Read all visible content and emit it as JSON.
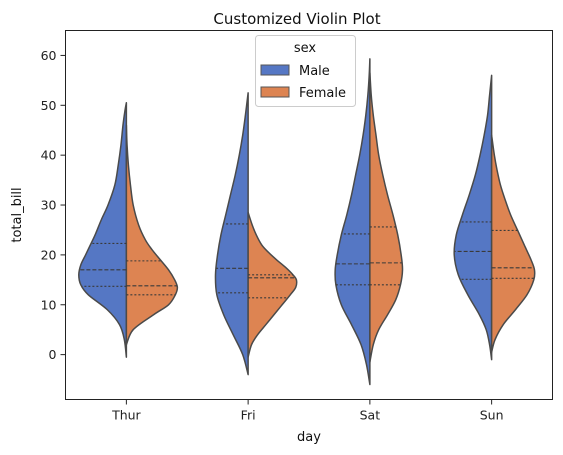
{
  "chart_data": {
    "type": "violin",
    "title": "Customized Violin Plot",
    "xlabel": "day",
    "ylabel": "total_bill",
    "categories": [
      "Thur",
      "Fri",
      "Sat",
      "Sun"
    ],
    "ylim": [
      -9,
      65
    ],
    "yticks": [
      0,
      10,
      20,
      30,
      40,
      50,
      60
    ],
    "grid": false,
    "split": true,
    "inner": "quartile",
    "legend": {
      "title": "sex",
      "placement": "upper center",
      "entries": [
        "Male",
        "Female"
      ]
    },
    "series": [
      {
        "name": "Male",
        "color": "#5577c4",
        "violins": [
          {
            "category": "Thur",
            "ymin": -0.5,
            "ymax": 50.5,
            "quartiles": [
              13.7,
              17.0,
              22.3
            ],
            "density": [
              [
                -0.5,
                0.0
              ],
              [
                3,
                0.03
              ],
              [
                6,
                0.1
              ],
              [
                9,
                0.28
              ],
              [
                12,
                0.56
              ],
              [
                14,
                0.67
              ],
              [
                16,
                0.7
              ],
              [
                18,
                0.67
              ],
              [
                20,
                0.6
              ],
              [
                22,
                0.53
              ],
              [
                24,
                0.46
              ],
              [
                27,
                0.37
              ],
              [
                30,
                0.27
              ],
              [
                34,
                0.17
              ],
              [
                38,
                0.12
              ],
              [
                42,
                0.08
              ],
              [
                46,
                0.05
              ],
              [
                49,
                0.02
              ],
              [
                50.5,
                0.0
              ]
            ]
          },
          {
            "category": "Fri",
            "ymin": -4,
            "ymax": 52.5,
            "quartiles": [
              12.4,
              17.3,
              26.2
            ],
            "density": [
              [
                -4,
                0.0
              ],
              [
                0,
                0.08
              ],
              [
                4,
                0.22
              ],
              [
                8,
                0.36
              ],
              [
                12,
                0.46
              ],
              [
                16,
                0.48
              ],
              [
                20,
                0.45
              ],
              [
                24,
                0.4
              ],
              [
                28,
                0.33
              ],
              [
                32,
                0.26
              ],
              [
                36,
                0.19
              ],
              [
                40,
                0.13
              ],
              [
                44,
                0.08
              ],
              [
                48,
                0.04
              ],
              [
                52.5,
                0.0
              ]
            ]
          },
          {
            "category": "Sat",
            "ymin": -6,
            "ymax": 59.3,
            "quartiles": [
              14.0,
              18.2,
              24.2
            ],
            "density": [
              [
                -6,
                0.0
              ],
              [
                -2,
                0.05
              ],
              [
                2,
                0.13
              ],
              [
                6,
                0.27
              ],
              [
                10,
                0.42
              ],
              [
                14,
                0.5
              ],
              [
                17,
                0.51
              ],
              [
                20,
                0.48
              ],
              [
                24,
                0.42
              ],
              [
                28,
                0.34
              ],
              [
                32,
                0.27
              ],
              [
                36,
                0.21
              ],
              [
                40,
                0.15
              ],
              [
                44,
                0.1
              ],
              [
                48,
                0.06
              ],
              [
                52,
                0.03
              ],
              [
                56,
                0.01
              ],
              [
                59.3,
                0.0
              ]
            ]
          },
          {
            "category": "Sun",
            "ymin": -1,
            "ymax": 56,
            "quartiles": [
              15.1,
              20.7,
              26.6
            ],
            "density": [
              [
                -1,
                0.0
              ],
              [
                2,
                0.03
              ],
              [
                5,
                0.08
              ],
              [
                8,
                0.18
              ],
              [
                12,
                0.35
              ],
              [
                16,
                0.49
              ],
              [
                20,
                0.55
              ],
              [
                24,
                0.52
              ],
              [
                28,
                0.43
              ],
              [
                32,
                0.33
              ],
              [
                36,
                0.24
              ],
              [
                40,
                0.17
              ],
              [
                44,
                0.11
              ],
              [
                48,
                0.06
              ],
              [
                52,
                0.03
              ],
              [
                56,
                0.0
              ]
            ]
          }
        ]
      },
      {
        "name": "Female",
        "color": "#dd8452",
        "violins": [
          {
            "category": "Thur",
            "ymin": 2,
            "ymax": 46,
            "quartiles": [
              12.0,
              13.8,
              18.8
            ],
            "density": [
              [
                2,
                0.0
              ],
              [
                5,
                0.1
              ],
              [
                8,
                0.4
              ],
              [
                10,
                0.62
              ],
              [
                12,
                0.72
              ],
              [
                13.5,
                0.75
              ],
              [
                15,
                0.71
              ],
              [
                17,
                0.62
              ],
              [
                19,
                0.5
              ],
              [
                21,
                0.38
              ],
              [
                23,
                0.28
              ],
              [
                26,
                0.18
              ],
              [
                30,
                0.1
              ],
              [
                34,
                0.06
              ],
              [
                38,
                0.03
              ],
              [
                42,
                0.01
              ],
              [
                46,
                0.0
              ]
            ]
          },
          {
            "category": "Fri",
            "ymin": -0.5,
            "ymax": 28.5,
            "quartiles": [
              11.4,
              15.4,
              16.0
            ],
            "density": [
              [
                -0.5,
                0.0
              ],
              [
                2,
                0.05
              ],
              [
                4,
                0.14
              ],
              [
                6,
                0.26
              ],
              [
                8,
                0.38
              ],
              [
                10,
                0.5
              ],
              [
                12,
                0.62
              ],
              [
                13.5,
                0.7
              ],
              [
                15,
                0.71
              ],
              [
                16,
                0.66
              ],
              [
                17.5,
                0.55
              ],
              [
                19,
                0.42
              ],
              [
                20.5,
                0.3
              ],
              [
                22,
                0.2
              ],
              [
                24,
                0.12
              ],
              [
                26,
                0.06
              ],
              [
                28.5,
                0.0
              ]
            ]
          },
          {
            "category": "Sat",
            "ymin": -1.5,
            "ymax": 56.5,
            "quartiles": [
              14.0,
              18.4,
              25.6
            ],
            "density": [
              [
                -1.5,
                0.0
              ],
              [
                2,
                0.05
              ],
              [
                5,
                0.13
              ],
              [
                8,
                0.26
              ],
              [
                11,
                0.38
              ],
              [
                14,
                0.45
              ],
              [
                17,
                0.48
              ],
              [
                20,
                0.46
              ],
              [
                24,
                0.41
              ],
              [
                28,
                0.34
              ],
              [
                32,
                0.26
              ],
              [
                36,
                0.19
              ],
              [
                40,
                0.13
              ],
              [
                44,
                0.09
              ],
              [
                48,
                0.05
              ],
              [
                52,
                0.02
              ],
              [
                56.5,
                0.0
              ]
            ]
          },
          {
            "category": "Sun",
            "ymin": 0.5,
            "ymax": 44,
            "quartiles": [
              15.3,
              17.4,
              24.9
            ],
            "density": [
              [
                0.5,
                0.0
              ],
              [
                3,
                0.05
              ],
              [
                6,
                0.17
              ],
              [
                9,
                0.35
              ],
              [
                12,
                0.52
              ],
              [
                15,
                0.62
              ],
              [
                17,
                0.63
              ],
              [
                19,
                0.58
              ],
              [
                22,
                0.48
              ],
              [
                25,
                0.38
              ],
              [
                28,
                0.28
              ],
              [
                31,
                0.2
              ],
              [
                34,
                0.13
              ],
              [
                37,
                0.08
              ],
              [
                40,
                0.04
              ],
              [
                44,
                0.0
              ]
            ]
          }
        ]
      }
    ]
  }
}
